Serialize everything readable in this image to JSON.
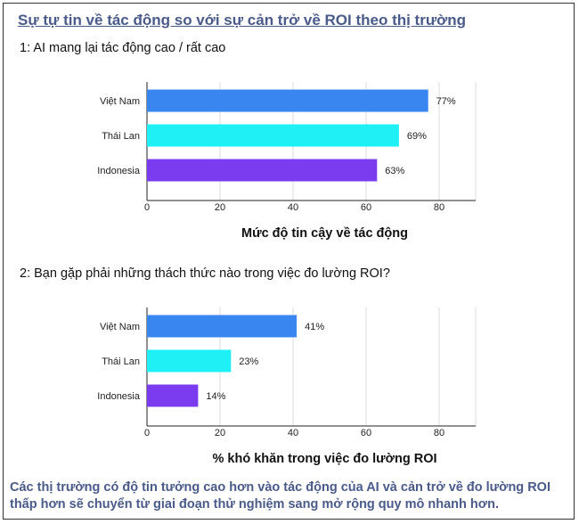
{
  "title": "Sự tự tin về tác động so với sự cản trở về ROI theo thị trường",
  "footer": "Các thị trường có độ tin tưởng cao hơn vào tác động của AI và cản trở về đo lường ROI thấp hơn sẽ chuyển từ giai đoạn thử nghiệm sang mở rộng quy mô nhanh hơn.",
  "colors": {
    "vietnam": "#3a86f0",
    "thailand": "#1ff0f5",
    "indonesia": "#7b3cf0"
  },
  "chart_data": [
    {
      "type": "bar",
      "orientation": "horizontal",
      "title": "1: AI mang lại tác động cao / rất cao",
      "xlabel": "Mức độ tin cậy về tác động",
      "categories": [
        "Việt Nam",
        "Thái Lan",
        "Indonesia"
      ],
      "values": [
        77,
        69,
        63
      ],
      "value_labels": [
        "77%",
        "69%",
        "63%"
      ],
      "xticks": [
        "0",
        "20",
        "40",
        "60",
        "80"
      ],
      "xlim": [
        0,
        90
      ],
      "grid": true
    },
    {
      "type": "bar",
      "orientation": "horizontal",
      "title": "2: Bạn gặp phải những thách thức nào trong việc đo lường ROI?",
      "xlabel": "% khó khăn trong việc đo lường ROI",
      "categories": [
        "Việt Nam",
        "Thái Lan",
        "Indonesia"
      ],
      "values": [
        41,
        23,
        14
      ],
      "value_labels": [
        "41%",
        "23%",
        "14%"
      ],
      "xticks": [
        "0",
        "20",
        "40",
        "60",
        "80"
      ],
      "xlim": [
        0,
        90
      ],
      "grid": true
    }
  ]
}
